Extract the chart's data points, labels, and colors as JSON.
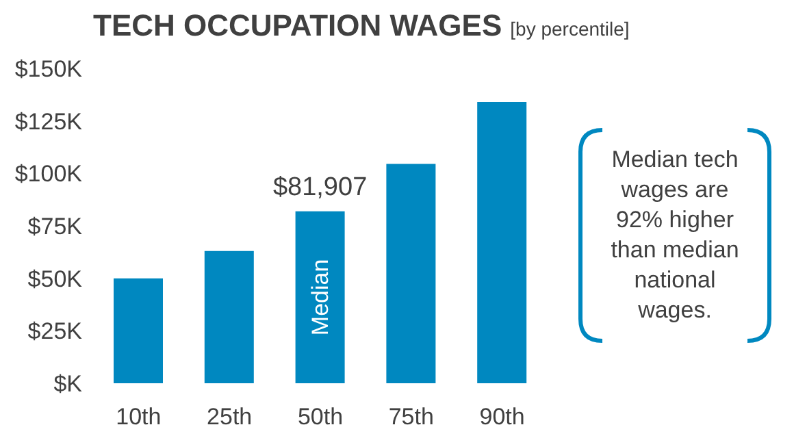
{
  "chart_data": {
    "type": "bar",
    "title": "TECH OCCUPATION WAGES",
    "subtitle": "[by percentile]",
    "categories": [
      "10th",
      "25th",
      "50th",
      "75th",
      "90th"
    ],
    "values": [
      50000,
      63000,
      81907,
      104500,
      134000
    ],
    "value_labels": [
      null,
      null,
      "$81,907",
      null,
      null
    ],
    "color": "#0088c0",
    "ylim": [
      0,
      150000
    ],
    "yticks": [
      {
        "value": 0,
        "label": "$K"
      },
      {
        "value": 25000,
        "label": "$25K"
      },
      {
        "value": 50000,
        "label": "$50K"
      },
      {
        "value": 75000,
        "label": "$75K"
      },
      {
        "value": 100000,
        "label": "$100K"
      },
      {
        "value": 125000,
        "label": "$125K"
      },
      {
        "value": 150000,
        "label": "$150K"
      }
    ],
    "grid": false,
    "legend": false,
    "annotations": [
      "Median",
      "Median tech wages are 92% higher than median national wages."
    ]
  }
}
